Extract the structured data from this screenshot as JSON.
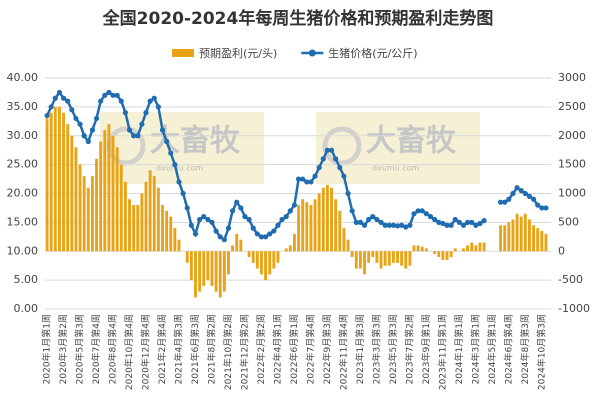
{
  "chart_data": {
    "type": "combo",
    "title": "全国2020-2024年每周生猪价格和预期盈利走势图",
    "watermarks": [
      [
        "大畜牧",
        "dxumu.com"
      ],
      [
        "大畜牧",
        "dxumu.com"
      ]
    ],
    "categories": [
      "2020年1月第1周",
      null,
      null,
      null,
      "2020年3月第2周",
      null,
      null,
      null,
      "2020年5月第3周",
      null,
      null,
      null,
      "2020年7月第4周",
      null,
      null,
      null,
      "2020年8月第4周",
      null,
      null,
      null,
      "2020年10月第4周",
      null,
      null,
      null,
      "2020年12月第4周",
      null,
      null,
      null,
      "2021年2月第4周",
      null,
      null,
      null,
      "2021年4月第3周",
      null,
      null,
      null,
      "2021年6月第3周",
      null,
      null,
      null,
      "2021年8月第2周",
      null,
      null,
      null,
      "2021年10月第2周",
      null,
      null,
      null,
      "2021年12月第2周",
      null,
      null,
      null,
      "2022年2月第2周",
      null,
      null,
      null,
      "2022年4月第1周",
      null,
      null,
      null,
      "2022年6月第1周",
      null,
      null,
      null,
      "2022年7月第4周",
      null,
      null,
      null,
      "2022年9月第3周",
      null,
      null,
      null,
      "2022年11月第4周",
      null,
      null,
      null,
      "2023年1月第3周",
      null,
      null,
      null,
      "2023年3月第3周",
      null,
      null,
      null,
      "2023年5月第3周",
      null,
      null,
      null,
      "2023年7月第2周",
      null,
      null,
      null,
      "2023年9月第1周",
      null,
      null,
      null,
      "2023年11月第1周",
      null,
      null,
      null,
      "2024年1月第1周",
      null,
      null,
      null,
      "2024年3月第1周",
      null,
      null,
      null,
      "2024年5月第1周",
      null,
      null,
      null,
      "2024年6月第4周",
      null,
      null,
      null,
      "2024年8月第3周",
      null,
      null,
      null,
      "2024年10月第3周",
      null
    ],
    "series": [
      {
        "name": "预期盈利(元/头)",
        "type": "bar",
        "axis": "y2",
        "color": "#e8a317",
        "values": [
          2300,
          2400,
          2500,
          2500,
          2400,
          2200,
          2000,
          1800,
          1500,
          1300,
          1100,
          1300,
          1600,
          1900,
          2100,
          2200,
          2000,
          1800,
          1500,
          1200,
          900,
          800,
          800,
          1000,
          1200,
          1400,
          1300,
          1100,
          800,
          700,
          600,
          400,
          200,
          0,
          -200,
          -500,
          -800,
          -700,
          -600,
          -500,
          -600,
          -700,
          -800,
          -700,
          -400,
          100,
          300,
          200,
          0,
          -100,
          -200,
          -300,
          -400,
          -500,
          -400,
          -300,
          -200,
          0,
          50,
          100,
          300,
          800,
          900,
          850,
          800,
          900,
          1000,
          1100,
          1150,
          1100,
          900,
          700,
          400,
          200,
          -100,
          -300,
          -300,
          -400,
          -200,
          -100,
          -200,
          -300,
          -250,
          -250,
          -200,
          -200,
          -250,
          -300,
          -250,
          100,
          100,
          80,
          50,
          0,
          -50,
          -100,
          -150,
          -150,
          -100,
          50,
          0,
          50,
          100,
          150,
          100,
          150,
          150,
          null,
          null,
          null,
          450,
          450,
          500,
          550,
          650,
          600,
          650,
          550,
          450,
          400,
          350,
          300
        ]
      },
      {
        "name": "生猪价格(元/公斤)",
        "type": "line",
        "color": "#1f6cb0",
        "values": [
          33.5,
          35,
          36.5,
          37.5,
          36.5,
          36,
          34.5,
          33,
          32,
          30,
          29,
          31,
          33,
          36,
          37,
          37.5,
          37,
          37,
          36,
          34,
          31,
          30,
          30,
          32,
          34,
          36,
          36.5,
          35,
          31,
          29,
          27,
          25,
          22,
          20,
          17.5,
          14.5,
          13,
          15.5,
          16,
          15.5,
          15,
          13.5,
          12.5,
          12,
          14,
          17,
          18.5,
          17.5,
          16,
          15.5,
          14,
          13,
          12.5,
          12.5,
          13,
          13.5,
          14.5,
          15.5,
          16,
          17,
          18,
          22.5,
          22.5,
          22,
          22,
          23,
          24.5,
          26,
          27.5,
          27.5,
          26,
          24.5,
          23,
          20,
          17,
          15,
          15,
          14.5,
          15.5,
          16,
          15.5,
          15,
          14.5,
          14.5,
          14.5,
          14.4,
          14.5,
          14.2,
          14.5,
          16.5,
          17,
          17,
          16.5,
          16,
          15.5,
          15,
          14.8,
          14.5,
          14.5,
          15.5,
          15,
          14.5,
          15,
          15,
          14.5,
          14.8,
          15.3,
          null,
          null,
          null,
          18.5,
          18.5,
          19,
          20,
          21,
          20.5,
          20,
          19.5,
          19,
          18,
          17.5,
          17.5
        ]
      }
    ],
    "ylim": [
      0,
      40
    ],
    "yticks": [
      {
        "value": 0,
        "label": "0.00"
      },
      {
        "value": 5,
        "label": "5.00"
      },
      {
        "value": 10,
        "label": "10.00"
      },
      {
        "value": 15,
        "label": "15.00"
      },
      {
        "value": 20,
        "label": "20.00"
      },
      {
        "value": 25,
        "label": "25.00"
      },
      {
        "value": 30,
        "label": "30.00"
      },
      {
        "value": 35,
        "label": "35.00"
      },
      {
        "value": 40,
        "label": "40.00"
      }
    ],
    "y2lim": [
      -1000,
      3000
    ],
    "y2ticks": [
      -1000,
      -500,
      0,
      500,
      1000,
      1500,
      2000,
      2500,
      3000
    ],
    "grid": true,
    "legend": "top"
  }
}
